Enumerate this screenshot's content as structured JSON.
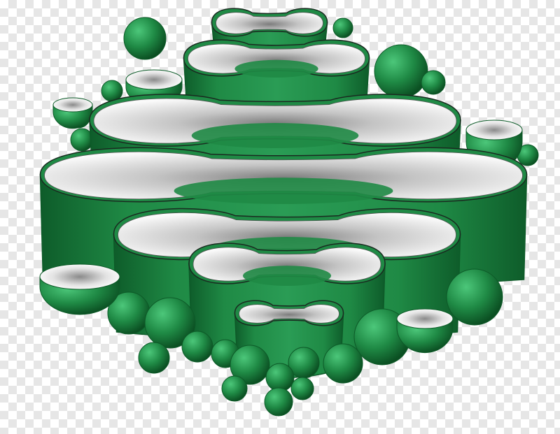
{
  "image": {
    "subject": "golgi-apparatus-illustration",
    "background": "transparent-checkerboard",
    "colors": {
      "membrane_green": "#1f8a45",
      "membrane_dark": "#0d5a28",
      "membrane_light": "#3fb86b",
      "lumen_white": "#f4f4f4",
      "lumen_shadow": "#8a8a8a",
      "checker_light": "#ffffff",
      "checker_dark": "#e6e6e6"
    },
    "cisternae_count": 7,
    "vesicle_count": 22
  }
}
